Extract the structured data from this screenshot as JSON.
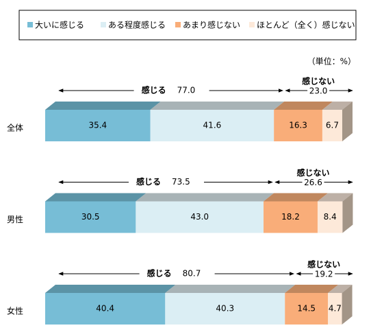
{
  "chart_data": {
    "type": "stacked-bar-3d",
    "categories": [
      "全体",
      "男性",
      "女性"
    ],
    "unit_note": "（単位：%）",
    "xlim": [
      0,
      100
    ],
    "series": [
      {
        "name": "大いに感じる",
        "color": "#77bdd6",
        "top_color": "#5b93a6",
        "values": [
          35.4,
          30.5,
          40.4
        ],
        "value_labels": [
          "35.4",
          "30.5",
          "40.4"
        ]
      },
      {
        "name": "ある程度感じる",
        "color": "#dbeef4",
        "top_color": "#a8b3b6",
        "values": [
          41.6,
          43.0,
          40.3
        ],
        "value_labels": [
          "41.6",
          "43.0",
          "40.3"
        ]
      },
      {
        "name": "あまり感じない",
        "color": "#f9ad79",
        "top_color": "#c0875e",
        "values": [
          16.3,
          18.2,
          14.5
        ],
        "value_labels": [
          "16.3",
          "18.2",
          "14.5"
        ]
      },
      {
        "name": "ほとんど（全く）感じない",
        "color": "#fde9d9",
        "top_color": "#bdb0a6",
        "values": [
          6.7,
          8.4,
          4.7
        ],
        "value_labels": [
          "6.7",
          "8.4",
          "4.7"
        ]
      }
    ],
    "annotations": [
      {
        "agree": "感じる",
        "agree_total": "77.0",
        "disagree": "感じない",
        "disagree_total": "23.0"
      },
      {
        "agree": "感じる",
        "agree_total": "73.5",
        "disagree": "感じない",
        "disagree_total": "26.6"
      },
      {
        "agree": "感じる",
        "agree_total": "80.7",
        "disagree": "感じない",
        "disagree_total": "19.2"
      }
    ]
  }
}
